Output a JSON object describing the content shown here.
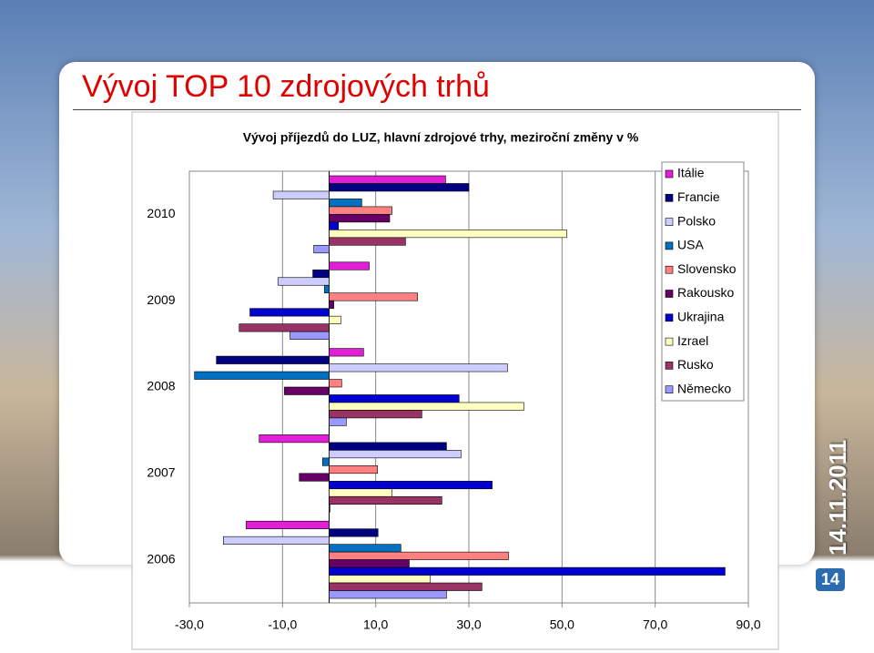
{
  "slide": {
    "title": "Vývoj TOP 10 zdrojových trhů",
    "date": "14.11.2011",
    "page": "14"
  },
  "chart_data": {
    "type": "hbar",
    "title": "Vývoj příjezdů do LUZ, hlavní zdrojové trhy, meziroční změny v %",
    "categories": [
      "2010",
      "2009",
      "2008",
      "2007",
      "2006"
    ],
    "series": [
      {
        "name": "Itálie",
        "color": "#e21fd6",
        "values": [
          25,
          8.6,
          7.4,
          -15,
          -17.8
        ]
      },
      {
        "name": "Francie",
        "color": "#000080",
        "values": [
          30,
          -3.5,
          -24.2,
          25.2,
          10.5
        ]
      },
      {
        "name": "Polsko",
        "color": "#ccccff",
        "values": [
          -12,
          -11,
          38.3,
          28.3,
          -22.7
        ]
      },
      {
        "name": "USA",
        "color": "#0070c0",
        "values": [
          7,
          -1,
          -28.9,
          -1.4,
          15.4
        ]
      },
      {
        "name": "Slovensko",
        "color": "#ff8080",
        "values": [
          13.5,
          19,
          2.7,
          10.4,
          38.5
        ]
      },
      {
        "name": "Rakousko",
        "color": "#660066",
        "values": [
          13,
          1,
          -9.6,
          -6.4,
          17.2
        ]
      },
      {
        "name": "Ukrajina",
        "color": "#0000d0",
        "values": [
          2,
          -17,
          27.9,
          35,
          85
        ]
      },
      {
        "name": "Izrael",
        "color": "#ffffc0",
        "values": [
          51,
          2.5,
          41.8,
          13.5,
          21.7
        ]
      },
      {
        "name": "Rusko",
        "color": "#993366",
        "values": [
          16.4,
          -19.3,
          19.9,
          24.2,
          32.8
        ]
      },
      {
        "name": "Německo",
        "color": "#9999ff",
        "values": [
          -3.3,
          -8.4,
          3.7,
          0.2,
          25.2
        ]
      }
    ],
    "xlim": [
      -30,
      90
    ],
    "xticks": [
      {
        "value": -30,
        "label": "-30,0"
      },
      {
        "value": -10,
        "label": "-10,0"
      },
      {
        "value": 10,
        "label": "10,0"
      },
      {
        "value": 30,
        "label": "30,0"
      },
      {
        "value": 50,
        "label": "50,0"
      },
      {
        "value": 70,
        "label": "70,0"
      },
      {
        "value": 90,
        "label": "90,0"
      }
    ],
    "grid": true,
    "legend": "top-right"
  }
}
